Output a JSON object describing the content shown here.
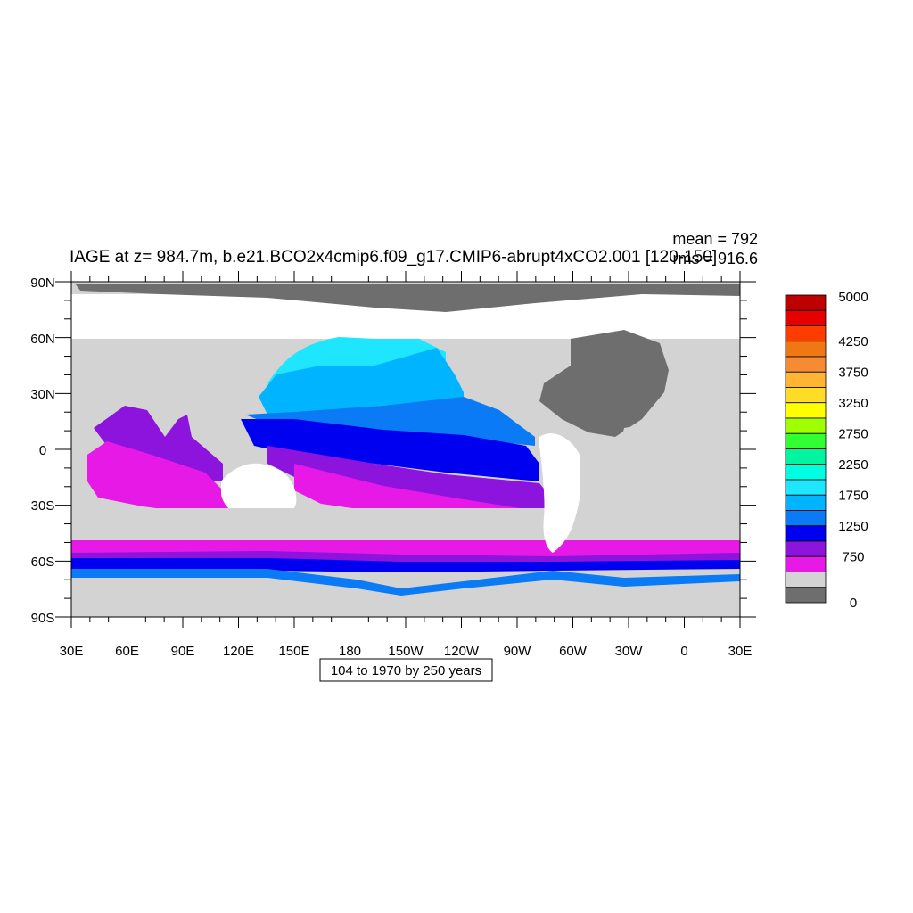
{
  "title": "IAGE at z= 984.7m, b.e21.BCO2x4cmip6.f09_g17.CMIP6-abrupt4xCO2.001 [120-150]",
  "stats": {
    "mean": "mean = 792",
    "rms": "rms = 916.6"
  },
  "range_note": "104 to 1970 by 250 years",
  "lon_labels": [
    "30E",
    "60E",
    "90E",
    "120E",
    "150E",
    "180",
    "150W",
    "120W",
    "90W",
    "60W",
    "30W",
    "0",
    "30E"
  ],
  "lat_labels": [
    "90N",
    "60N",
    "30N",
    "0",
    "30S",
    "60S",
    "90S"
  ],
  "colorbar": {
    "colors": [
      "#6e6e6e",
      "#d3d3d3",
      "#e619e6",
      "#8c14dc",
      "#0000f0",
      "#0a7af5",
      "#00b4ff",
      "#1ee6ff",
      "#00ffe1",
      "#00f5a0",
      "#32ff32",
      "#a0ff00",
      "#ffff00",
      "#ffdc28",
      "#ffb432",
      "#f58c32",
      "#f07814",
      "#ff3c00",
      "#e60000",
      "#be0000"
    ],
    "labels": [
      "5000",
      "4250",
      "3750",
      "3250",
      "2750",
      "2250",
      "1750",
      "1250",
      "750",
      "0"
    ]
  },
  "colors": {
    "land_light": "#d3d3d3",
    "land_dark": "#6e6e6e",
    "ocean_0_250": "#d3d3d3",
    "ocean_500": "#e619e6",
    "ocean_750": "#8c14dc",
    "ocean_1000": "#0000f0",
    "ocean_1250": "#0a7af5",
    "ocean_1500": "#00b4ff",
    "ocean_1750": "#1ee6ff"
  }
}
